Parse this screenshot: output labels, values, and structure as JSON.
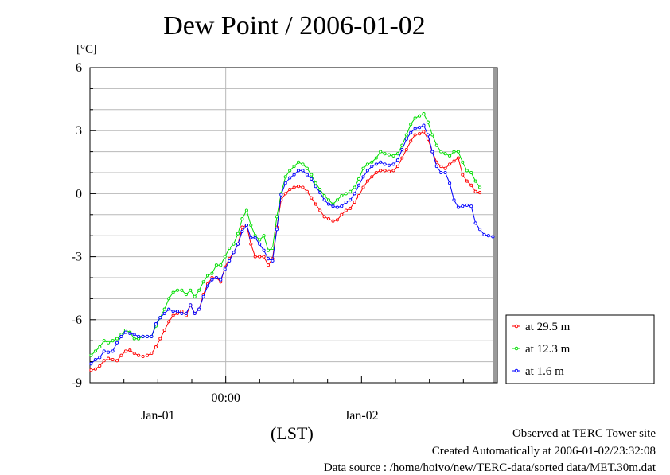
{
  "chart_data": {
    "type": "line",
    "title": "Dew Point / 2006-01-02",
    "ylabel": "[°C]",
    "xunit_label": "(LST)",
    "ylim": [
      -9,
      6
    ],
    "yticks": [
      -9,
      -6,
      -3,
      0,
      3,
      6
    ],
    "ytick_labels": [
      "-9",
      "-6",
      "-3",
      "0",
      "3",
      "6"
    ],
    "x_axis_hours": [
      -12,
      24
    ],
    "xtick_labels": [
      {
        "hour": 0,
        "row": 1,
        "text": "00:00"
      },
      {
        "hour": -6,
        "row": 2,
        "text": "Jan-01"
      },
      {
        "hour": 12,
        "row": 2,
        "text": "Jan-02"
      }
    ],
    "grid": true,
    "legend_placement": "lower-right-outside",
    "series": [
      {
        "name": "at 29.5 m",
        "color": "#ff0000",
        "values": [
          -8.4,
          -8.35,
          -8.2,
          -7.95,
          -7.85,
          -7.9,
          -7.95,
          -7.7,
          -7.5,
          -7.45,
          -7.6,
          -7.7,
          -7.75,
          -7.7,
          -7.6,
          -7.3,
          -6.9,
          -6.5,
          -6.1,
          -5.8,
          -5.7,
          -5.6,
          -5.8,
          -5.3,
          -5.7,
          -5.5,
          -4.8,
          -4.3,
          -4.0,
          -4.0,
          -4.2,
          -3.5,
          -3.1,
          -2.8,
          -2.4,
          -1.6,
          -1.5,
          -2.4,
          -3.0,
          -3.0,
          -3.0,
          -3.4,
          -3.1,
          -1.6,
          -0.3,
          0.0,
          0.2,
          0.3,
          0.35,
          0.3,
          0.1,
          -0.2,
          -0.5,
          -0.8,
          -1.1,
          -1.2,
          -1.3,
          -1.25,
          -1.0,
          -0.8,
          -0.7,
          -0.4,
          -0.1,
          0.3,
          0.6,
          0.8,
          1.0,
          1.1,
          1.1,
          1.05,
          1.1,
          1.3,
          1.7,
          2.1,
          2.5,
          2.8,
          2.85,
          2.95,
          2.6,
          2.0,
          1.5,
          1.3,
          1.2,
          1.4,
          1.55,
          1.7,
          0.9,
          0.6,
          0.4,
          0.1,
          0.05
        ]
      },
      {
        "name": "at 12.3 m",
        "color": "#00dd00",
        "values": [
          -7.7,
          -7.5,
          -7.3,
          -7.0,
          -7.1,
          -7.0,
          -6.9,
          -6.7,
          -6.5,
          -6.6,
          -6.9,
          -6.9,
          -6.8,
          -6.8,
          -6.8,
          -6.3,
          -5.9,
          -5.5,
          -5.0,
          -4.7,
          -4.6,
          -4.6,
          -4.8,
          -4.6,
          -4.9,
          -4.6,
          -4.2,
          -3.9,
          -3.8,
          -3.4,
          -3.4,
          -3.0,
          -2.6,
          -2.4,
          -1.9,
          -1.2,
          -0.8,
          -1.5,
          -2.0,
          -2.2,
          -2.0,
          -2.7,
          -2.6,
          -1.1,
          0.0,
          0.8,
          1.1,
          1.3,
          1.5,
          1.4,
          1.2,
          0.9,
          0.5,
          0.2,
          -0.1,
          -0.3,
          -0.5,
          -0.3,
          -0.1,
          0.0,
          0.1,
          0.3,
          0.7,
          1.2,
          1.4,
          1.5,
          1.7,
          2.0,
          1.9,
          1.85,
          1.8,
          1.9,
          2.3,
          2.8,
          3.3,
          3.6,
          3.7,
          3.8,
          3.4,
          2.8,
          2.3,
          2.0,
          1.9,
          1.8,
          2.0,
          2.0,
          1.5,
          1.1,
          1.0,
          0.6,
          0.3
        ]
      },
      {
        "name": "at 1.6 m",
        "color": "#0000ff",
        "values": [
          -8.1,
          -7.9,
          -7.8,
          -7.5,
          -7.55,
          -7.5,
          -7.1,
          -6.8,
          -6.6,
          -6.65,
          -6.7,
          -6.8,
          -6.8,
          -6.8,
          -6.8,
          -6.2,
          -5.9,
          -5.7,
          -5.5,
          -5.6,
          -5.6,
          -5.7,
          -5.7,
          -5.3,
          -5.7,
          -5.5,
          -4.9,
          -4.4,
          -4.1,
          -4.0,
          -4.1,
          -3.6,
          -3.2,
          -2.8,
          -2.4,
          -1.8,
          -1.5,
          -2.1,
          -2.1,
          -2.4,
          -2.7,
          -3.1,
          -3.2,
          -1.7,
          -0.05,
          0.5,
          0.75,
          0.9,
          1.1,
          1.1,
          0.9,
          0.7,
          0.35,
          0.05,
          -0.3,
          -0.5,
          -0.6,
          -0.65,
          -0.6,
          -0.4,
          -0.3,
          0.0,
          0.4,
          0.8,
          1.1,
          1.3,
          1.4,
          1.5,
          1.4,
          1.35,
          1.4,
          1.6,
          2.1,
          2.6,
          2.9,
          3.1,
          3.15,
          3.25,
          2.8,
          2.0,
          1.3,
          1.0,
          1.0,
          0.5,
          -0.3,
          -0.65,
          -0.6,
          -0.55,
          -0.6,
          -1.4,
          -1.7,
          -1.95,
          -2.0,
          -2.05
        ]
      }
    ]
  },
  "footer": {
    "observed": "Observed at TERC Tower site",
    "created": "Created Automatically at 2006-01-02/23:32:08",
    "source": "Data source : /home/hoivo/new/TERC-data/sorted  data/MET.30m.dat"
  }
}
